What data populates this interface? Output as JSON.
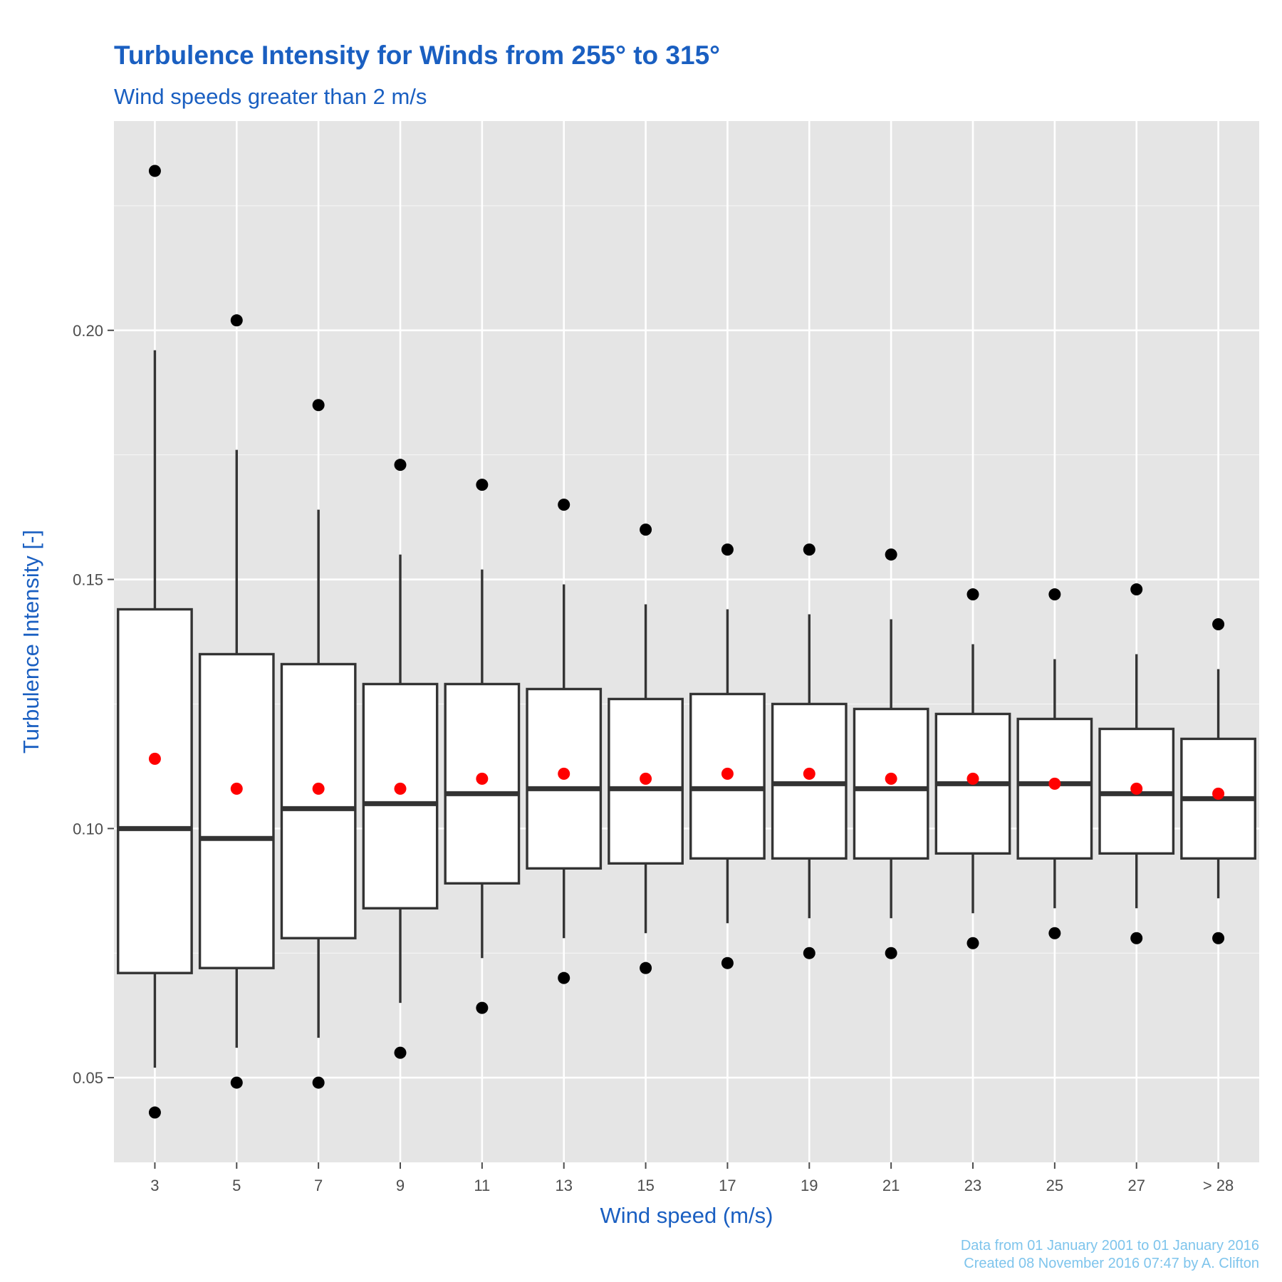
{
  "chart_data": {
    "type": "box",
    "title": "Turbulence Intensity for Winds from 255° to 315°",
    "subtitle": "Wind speeds greater than 2 m/s",
    "xlabel": "Wind speed (m/s)",
    "ylabel": "Turbulence Intensity [-]",
    "ylim": [
      0.033,
      0.242
    ],
    "yticks": [
      0.05,
      0.1,
      0.15,
      0.2
    ],
    "ytick_labels": [
      "0.05",
      "0.10",
      "0.15",
      "0.20"
    ],
    "grid": true,
    "categories": [
      "3",
      "5",
      "7",
      "9",
      "11",
      "13",
      "15",
      "17",
      "19",
      "21",
      "23",
      "25",
      "27",
      "> 28"
    ],
    "boxes": [
      {
        "whisker_low": 0.052,
        "q1": 0.071,
        "median": 0.1,
        "q3": 0.144,
        "whisker_high": 0.196,
        "mean": 0.114,
        "outliers": [
          0.043,
          0.232
        ]
      },
      {
        "whisker_low": 0.056,
        "q1": 0.072,
        "median": 0.098,
        "q3": 0.135,
        "whisker_high": 0.176,
        "mean": 0.108,
        "outliers": [
          0.049,
          0.202
        ]
      },
      {
        "whisker_low": 0.058,
        "q1": 0.078,
        "median": 0.104,
        "q3": 0.133,
        "whisker_high": 0.164,
        "mean": 0.108,
        "outliers": [
          0.049,
          0.185
        ]
      },
      {
        "whisker_low": 0.065,
        "q1": 0.084,
        "median": 0.105,
        "q3": 0.129,
        "whisker_high": 0.155,
        "mean": 0.108,
        "outliers": [
          0.055,
          0.173
        ]
      },
      {
        "whisker_low": 0.074,
        "q1": 0.089,
        "median": 0.107,
        "q3": 0.129,
        "whisker_high": 0.152,
        "mean": 0.11,
        "outliers": [
          0.064,
          0.169
        ]
      },
      {
        "whisker_low": 0.078,
        "q1": 0.092,
        "median": 0.108,
        "q3": 0.128,
        "whisker_high": 0.149,
        "mean": 0.111,
        "outliers": [
          0.07,
          0.165
        ]
      },
      {
        "whisker_low": 0.079,
        "q1": 0.093,
        "median": 0.108,
        "q3": 0.126,
        "whisker_high": 0.145,
        "mean": 0.11,
        "outliers": [
          0.072,
          0.16
        ]
      },
      {
        "whisker_low": 0.081,
        "q1": 0.094,
        "median": 0.108,
        "q3": 0.127,
        "whisker_high": 0.144,
        "mean": 0.111,
        "outliers": [
          0.073,
          0.156
        ]
      },
      {
        "whisker_low": 0.082,
        "q1": 0.094,
        "median": 0.109,
        "q3": 0.125,
        "whisker_high": 0.143,
        "mean": 0.111,
        "outliers": [
          0.075,
          0.156
        ]
      },
      {
        "whisker_low": 0.082,
        "q1": 0.094,
        "median": 0.108,
        "q3": 0.124,
        "whisker_high": 0.142,
        "mean": 0.11,
        "outliers": [
          0.075,
          0.155
        ]
      },
      {
        "whisker_low": 0.083,
        "q1": 0.095,
        "median": 0.109,
        "q3": 0.123,
        "whisker_high": 0.137,
        "mean": 0.11,
        "outliers": [
          0.077,
          0.147
        ]
      },
      {
        "whisker_low": 0.084,
        "q1": 0.094,
        "median": 0.109,
        "q3": 0.122,
        "whisker_high": 0.134,
        "mean": 0.109,
        "outliers": [
          0.079,
          0.147
        ]
      },
      {
        "whisker_low": 0.084,
        "q1": 0.095,
        "median": 0.107,
        "q3": 0.12,
        "whisker_high": 0.135,
        "mean": 0.108,
        "outliers": [
          0.078,
          0.148
        ]
      },
      {
        "whisker_low": 0.086,
        "q1": 0.094,
        "median": 0.106,
        "q3": 0.118,
        "whisker_high": 0.132,
        "mean": 0.107,
        "outliers": [
          0.078,
          0.141
        ]
      }
    ],
    "colors": {
      "panel_bg": "#e5e5e5",
      "grid": "#ffffff",
      "box_fill": "#ffffff",
      "box_stroke": "#333333",
      "outlier": "#000000",
      "mean": "#ff0000",
      "title": "#1a5fc1",
      "caption": "#7ec4ec"
    },
    "caption": [
      "Data from 01 January 2001 to 01 January 2016",
      "Created 08 November 2016 07:47 by A. Clifton"
    ]
  }
}
